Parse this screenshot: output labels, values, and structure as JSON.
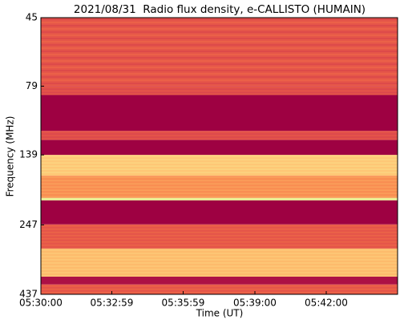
{
  "chart_data": {
    "type": "spectrogram",
    "title": "2021/08/31  Radio flux density, e-CALLISTO (HUMAIN)",
    "x_label": "Time (UT)",
    "y_label": "Frequency (MHz)",
    "xlim": [
      "05:30:00",
      "05:45:00"
    ],
    "xticks": [
      "05:30:00",
      "05:32:59",
      "05:35:59",
      "05:39:00",
      "05:42:00"
    ],
    "ylim": [
      437,
      45
    ],
    "ylog": true,
    "yticks": [
      45,
      79,
      139,
      247,
      437
    ],
    "colormap": [
      "#9e0142",
      "#d53e4f",
      "#f46d43",
      "#fdae61",
      "#fee08b",
      "#e6f598"
    ],
    "bands": [
      {
        "from": 45,
        "to": 79,
        "level": 0.3
      },
      {
        "from": 79,
        "to": 85,
        "level": 0.25
      },
      {
        "from": 85,
        "to": 114,
        "level": 0.0
      },
      {
        "from": 114,
        "to": 123,
        "level": 0.25
      },
      {
        "from": 123,
        "to": 139,
        "level": 0.0
      },
      {
        "from": 139,
        "to": 165,
        "level": 0.7
      },
      {
        "from": 165,
        "to": 198,
        "level": 0.5
      },
      {
        "from": 198,
        "to": 202,
        "level": 0.95
      },
      {
        "from": 202,
        "to": 246,
        "level": 0.0
      },
      {
        "from": 246,
        "to": 300,
        "level": 0.3
      },
      {
        "from": 300,
        "to": 378,
        "level": 0.65
      },
      {
        "from": 378,
        "to": 403,
        "level": 0.05
      },
      {
        "from": 403,
        "to": 437,
        "level": 0.3
      }
    ]
  }
}
